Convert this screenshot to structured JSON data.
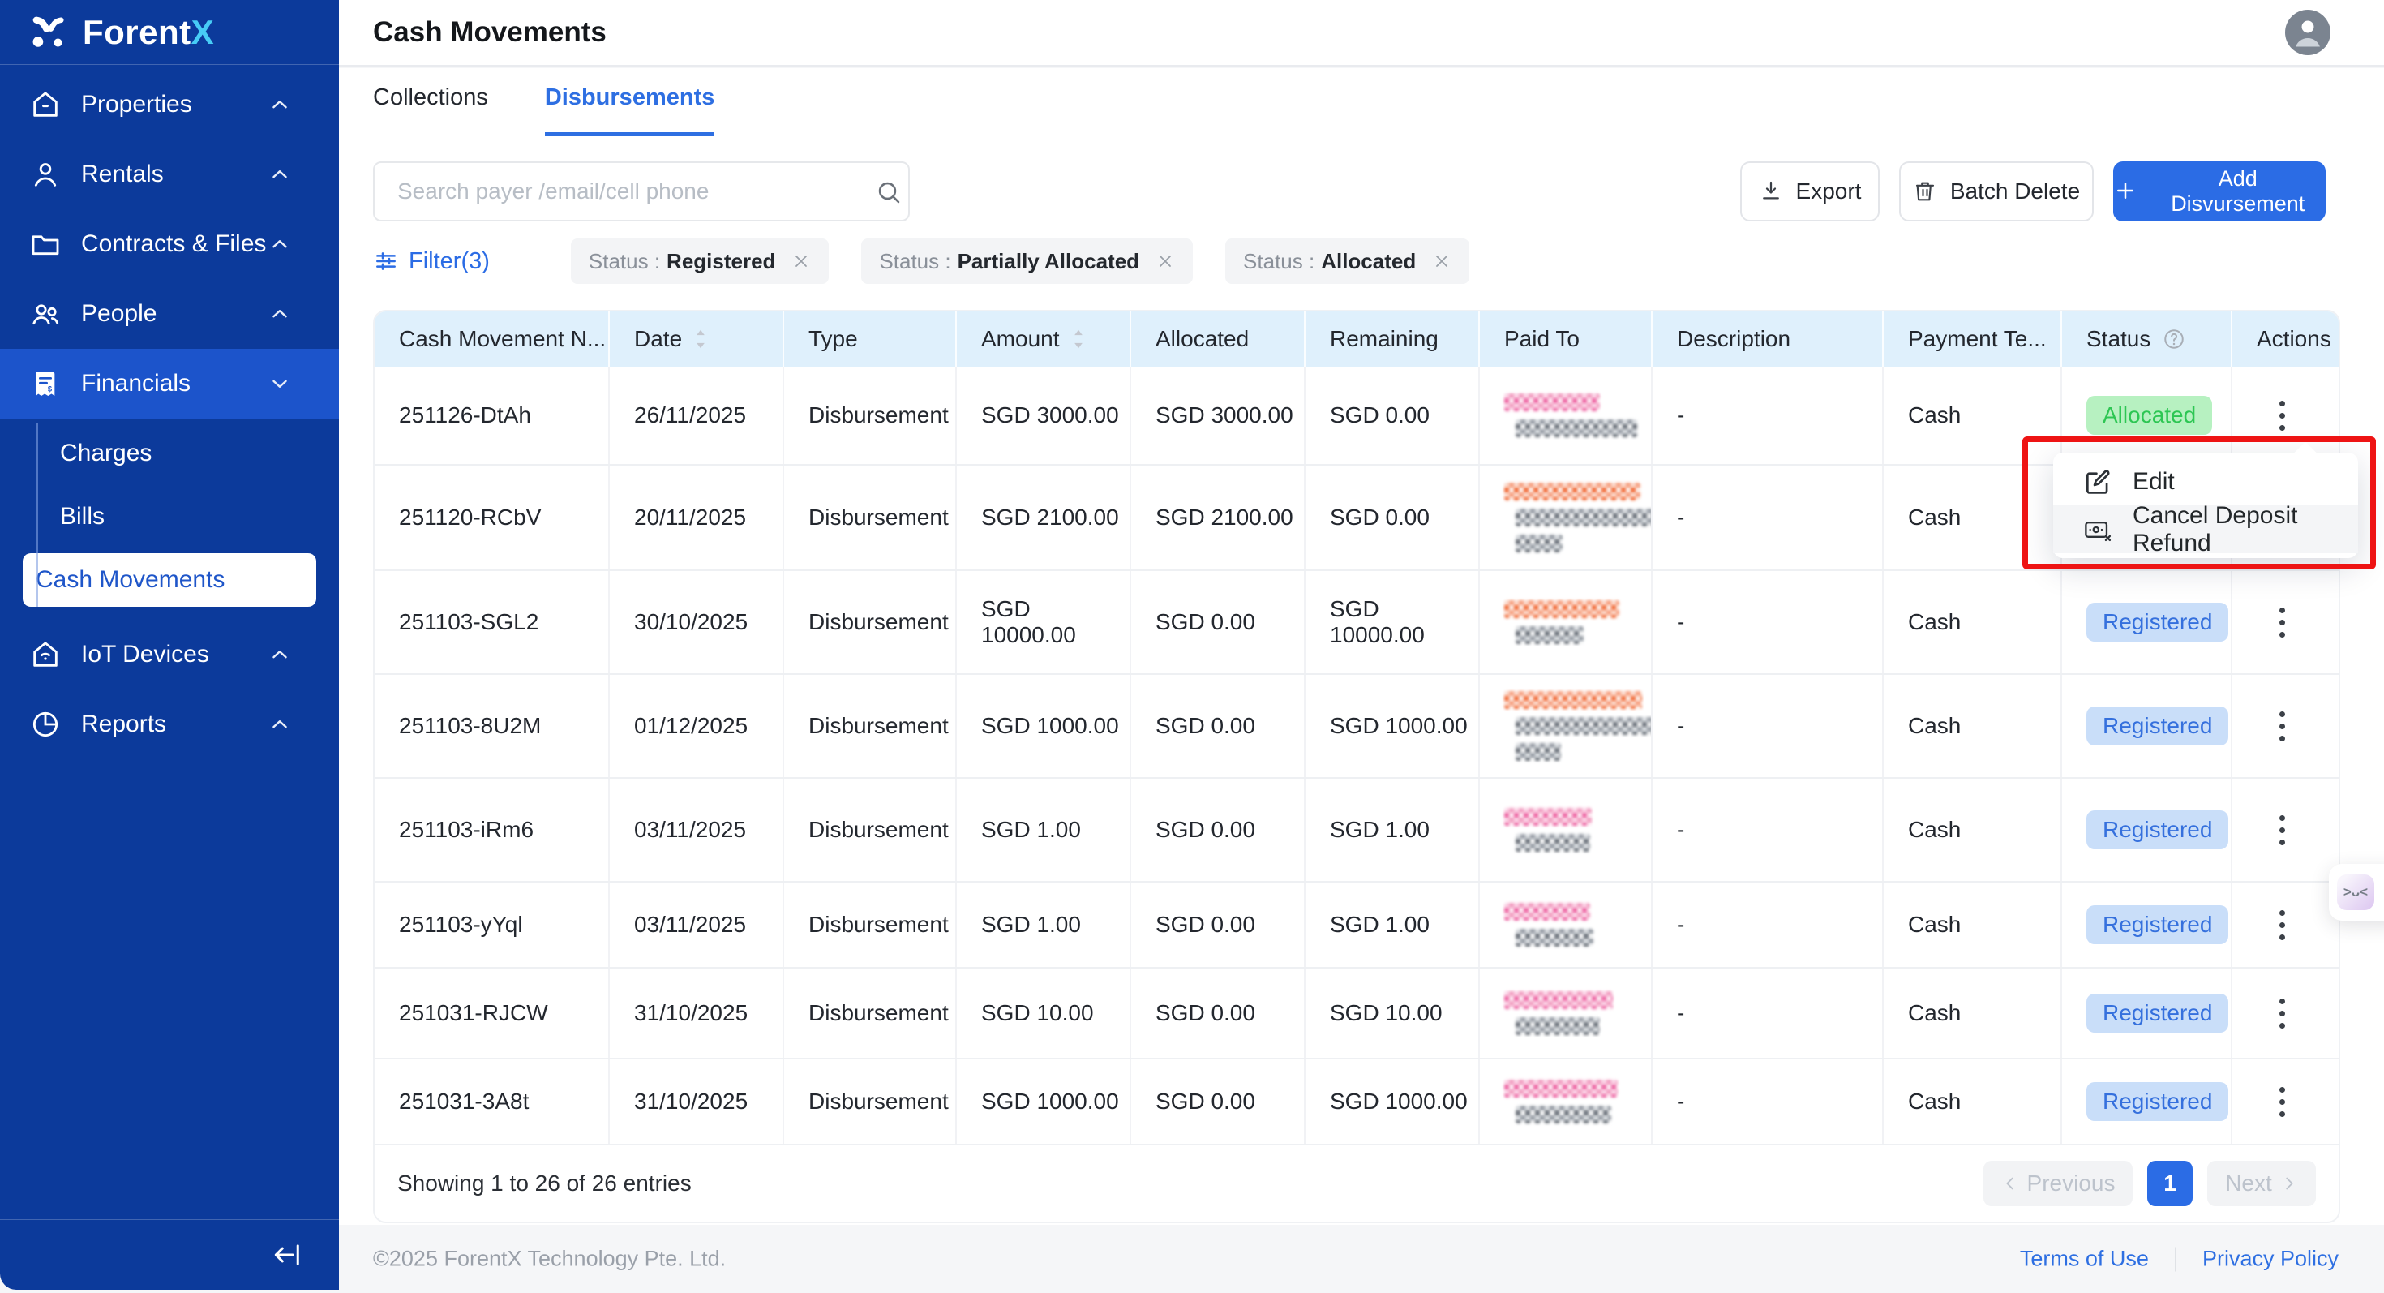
{
  "app": {
    "name_primary": "Forent",
    "name_accent": "X"
  },
  "colors": {
    "accent": "#2b6ce5",
    "sidebar": "#0c3a9b",
    "sidebar_active": "#1c54cb",
    "logo_accent": "#47ccf6",
    "table_header_bg": "#dff0fc",
    "annotation_red": "#ee1414"
  },
  "sidebar": {
    "items": [
      {
        "label": "Properties",
        "icon": "home",
        "chevron": "up"
      },
      {
        "label": "Rentals",
        "icon": "person",
        "chevron": "up"
      },
      {
        "label": "Contracts & Files",
        "icon": "folder",
        "chevron": "up"
      },
      {
        "label": "People",
        "icon": "people",
        "chevron": "up"
      },
      {
        "label": "Financials",
        "icon": "invoice",
        "chevron": "down",
        "active": true,
        "children": [
          {
            "label": "Charges"
          },
          {
            "label": "Bills"
          },
          {
            "label": "Cash Movements",
            "selected": true
          }
        ]
      },
      {
        "label": "IoT Devices",
        "icon": "iot",
        "chevron": "up"
      },
      {
        "label": "Reports",
        "icon": "pie",
        "chevron": "up"
      }
    ]
  },
  "header": {
    "title": "Cash Movements"
  },
  "tabs": [
    {
      "label": "Collections",
      "active": false
    },
    {
      "label": "Disbursements",
      "active": true
    }
  ],
  "toolbar": {
    "search_placeholder": "Search payer /email/cell phone",
    "export_label": "Export",
    "batch_delete_label": "Batch Delete",
    "add_label": "Add Disvursement"
  },
  "filters": {
    "label": "Filter(3)",
    "chips": [
      {
        "field": "Status",
        "value": "Registered"
      },
      {
        "field": "Status",
        "value": "Partially Allocated"
      },
      {
        "field": "Status",
        "value": "Allocated"
      }
    ]
  },
  "table": {
    "columns": [
      {
        "label": "Cash Movement N..."
      },
      {
        "label": "Date",
        "sort": true
      },
      {
        "label": "Type"
      },
      {
        "label": "Amount",
        "sort": true
      },
      {
        "label": "Allocated"
      },
      {
        "label": "Remaining"
      },
      {
        "label": "Paid To"
      },
      {
        "label": "Description"
      },
      {
        "label": "Payment Te..."
      },
      {
        "label": "Status",
        "help": true
      },
      {
        "label": "Actions"
      }
    ],
    "rows": [
      {
        "number": "251126-DtAh",
        "date": "26/11/2025",
        "type": "Disbursement",
        "amount": "SGD 3000.00",
        "allocated": "SGD 3000.00",
        "remaining": "SGD 0.00",
        "paid_to": [
          [
            "pink",
            118
          ],
          [
            "gray",
            150
          ]
        ],
        "description": "-",
        "payment": "Cash",
        "status": "Allocated"
      },
      {
        "number": "251120-RCbV",
        "date": "20/11/2025",
        "type": "Disbursement",
        "amount": "SGD 2100.00",
        "allocated": "SGD 2100.00",
        "remaining": "SGD 0.00",
        "paid_to": [
          [
            "orange",
            168
          ],
          [
            "gray",
            196
          ],
          [
            "gray",
            58
          ]
        ],
        "description": "-",
        "payment": "Cash",
        "status": null
      },
      {
        "number": "251103-SGL2",
        "date": "30/10/2025",
        "type": "Disbursement",
        "amount": "SGD 10000.00",
        "allocated": "SGD 0.00",
        "remaining": "SGD 10000.00",
        "paid_to": [
          [
            "orange",
            142
          ],
          [
            "gray",
            84
          ]
        ],
        "description": "-",
        "payment": "Cash",
        "status": "Registered"
      },
      {
        "number": "251103-8U2M",
        "date": "01/12/2025",
        "type": "Disbursement",
        "amount": "SGD 1000.00",
        "allocated": "SGD 0.00",
        "remaining": "SGD 1000.00",
        "paid_to": [
          [
            "orange",
            170
          ],
          [
            "gray",
            206
          ],
          [
            "gray",
            56
          ]
        ],
        "description": "-",
        "payment": "Cash",
        "status": "Registered"
      },
      {
        "number": "251103-iRm6",
        "date": "03/11/2025",
        "type": "Disbursement",
        "amount": "SGD 1.00",
        "allocated": "SGD 0.00",
        "remaining": "SGD 1.00",
        "paid_to": [
          [
            "pink",
            108
          ],
          [
            "gray",
            92
          ]
        ],
        "description": "-",
        "payment": "Cash",
        "status": "Registered"
      },
      {
        "number": "251103-yYql",
        "date": "03/11/2025",
        "type": "Disbursement",
        "amount": "SGD 1.00",
        "allocated": "SGD 0.00",
        "remaining": "SGD 1.00",
        "paid_to": [
          [
            "pink",
            106
          ],
          [
            "gray",
            96
          ]
        ],
        "description": "-",
        "payment": "Cash",
        "status": "Registered"
      },
      {
        "number": "251031-RJCW",
        "date": "31/10/2025",
        "type": "Disbursement",
        "amount": "SGD 10.00",
        "allocated": "SGD 0.00",
        "remaining": "SGD 10.00",
        "paid_to": [
          [
            "pink",
            134
          ],
          [
            "gray",
            104
          ]
        ],
        "description": "-",
        "payment": "Cash",
        "status": "Registered"
      },
      {
        "number": "251031-3A8t",
        "date": "31/10/2025",
        "type": "Disbursement",
        "amount": "SGD 1000.00",
        "allocated": "SGD 0.00",
        "remaining": "SGD 1000.00",
        "paid_to": [
          [
            "pink",
            140
          ],
          [
            "gray",
            118
          ]
        ],
        "description": "-",
        "payment": "Cash",
        "status": "Registered"
      }
    ]
  },
  "status_colors": {
    "Allocated": {
      "bg": "#b7f1c1",
      "text": "#2dc653"
    },
    "Registered": {
      "bg": "#c9def9",
      "text": "#3570dd"
    }
  },
  "context_menu": {
    "items": [
      {
        "label": "Edit",
        "icon": "edit",
        "hover": false
      },
      {
        "label": "Cancel Deposit Refund",
        "icon": "card-cancel",
        "hover": true
      }
    ]
  },
  "pagination": {
    "showing": "Showing 1 to 26 of 26 entries",
    "previous": "Previous",
    "page": "1",
    "next": "Next"
  },
  "footer": {
    "copyright": "©2025 ForentX Technology Pte. Ltd.",
    "links": [
      "Terms of Use",
      "Privacy Policy"
    ]
  },
  "widget": {
    "face": ">ᴗ<"
  }
}
